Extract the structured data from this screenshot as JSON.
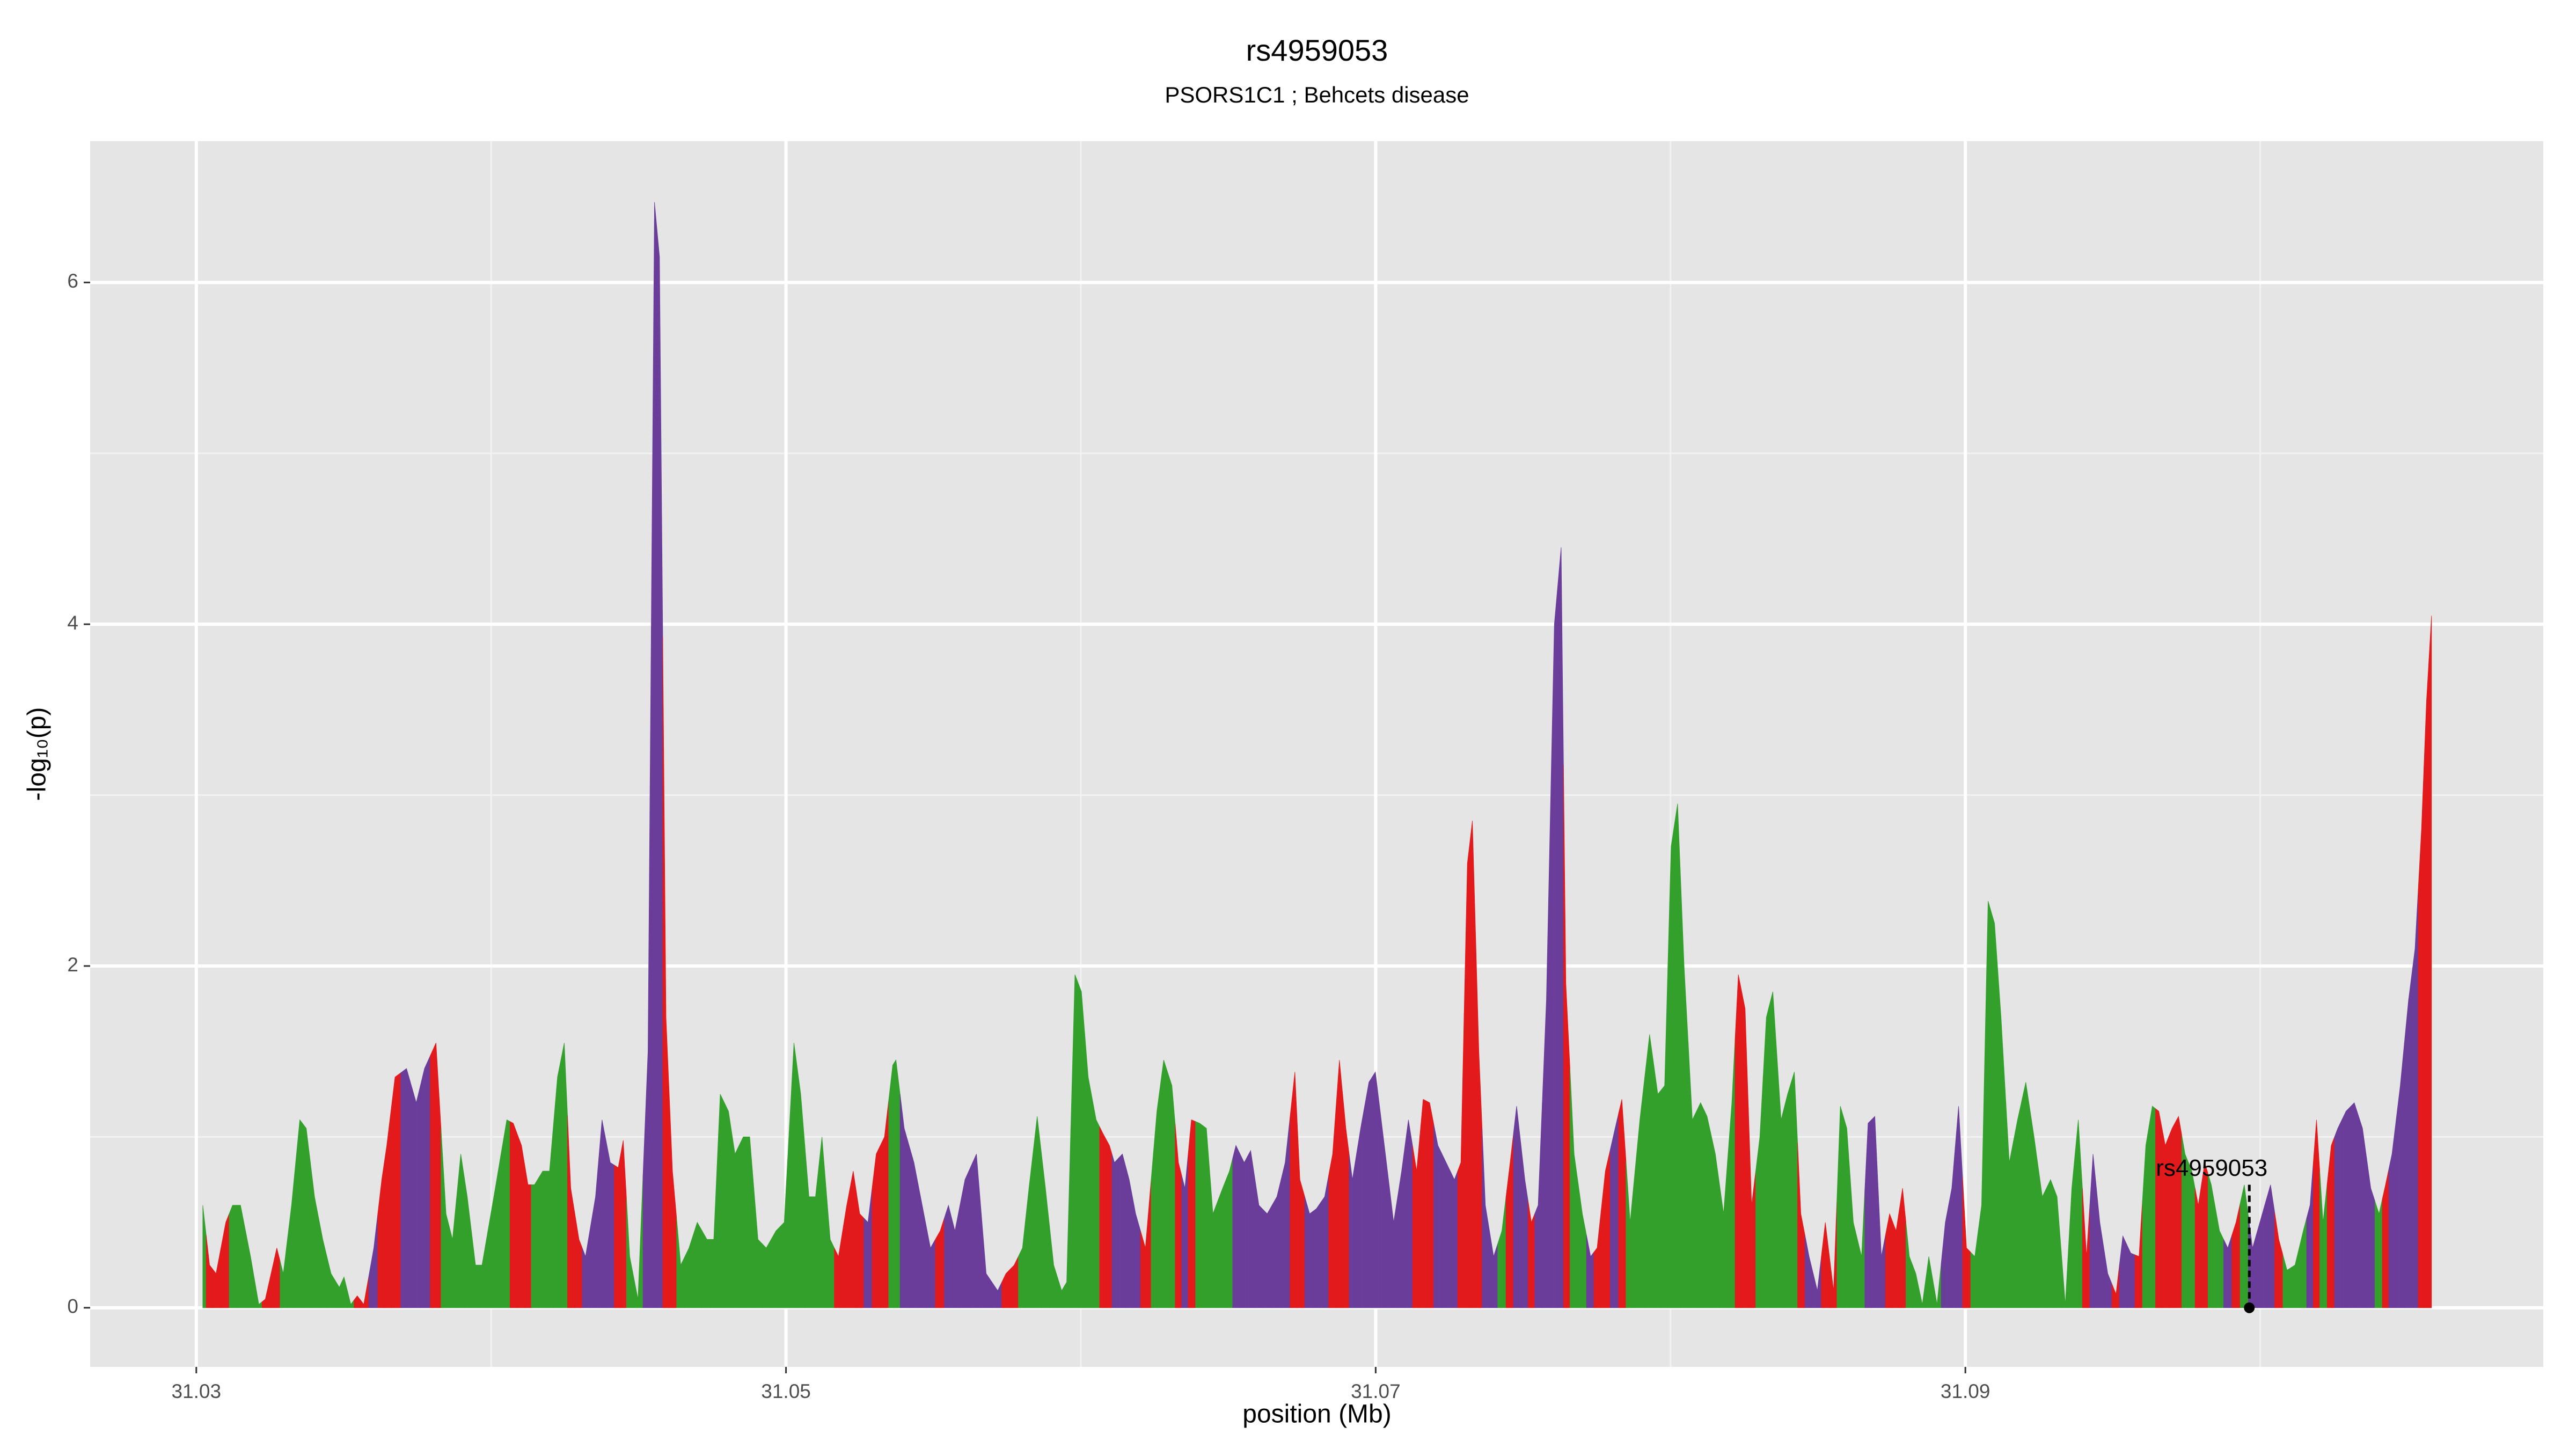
{
  "chart_data": {
    "type": "area",
    "title": "rs4959053",
    "subtitle": "PSORS1C1 ; Behcets disease",
    "x_label": "position (Mb)",
    "y_label": "-log₁₀(p)",
    "xlim": [
      31.0264,
      31.1096
    ],
    "ylim": [
      -0.346,
      6.827
    ],
    "xticks": [
      31.03,
      31.05,
      31.07,
      31.09
    ],
    "yticks": [
      0,
      2,
      4,
      6
    ],
    "x_minor_grid": [
      31.04,
      31.06,
      31.08,
      31.1
    ],
    "y_minor_grid": [
      1,
      3,
      5
    ],
    "grid": true,
    "x": [
      31.03022,
      31.03045,
      31.03067,
      31.031,
      31.03123,
      31.0315,
      31.03184,
      31.03212,
      31.03234,
      31.03273,
      31.03295,
      31.03323,
      31.03351,
      31.03373,
      31.03401,
      31.03429,
      31.03457,
      31.03485,
      31.03501,
      31.03524,
      31.03546,
      31.03568,
      31.03602,
      31.03629,
      31.03646,
      31.03674,
      31.03713,
      31.03746,
      31.03774,
      31.03813,
      31.03847,
      31.03869,
      31.03897,
      31.03919,
      31.03947,
      31.03969,
      31.04014,
      31.04053,
      31.04075,
      31.04103,
      31.04125,
      31.04147,
      31.04175,
      31.04198,
      31.04225,
      31.04248,
      31.0427,
      31.04298,
      31.0432,
      31.04354,
      31.04376,
      31.04404,
      31.04431,
      31.04448,
      31.0447,
      31.04498,
      31.04532,
      31.04554,
      31.04571,
      31.04593,
      31.04615,
      31.04643,
      31.04671,
      31.04699,
      31.04732,
      31.04755,
      31.04777,
      31.04805,
      31.04827,
      31.04855,
      31.04877,
      31.04905,
      31.04933,
      31.04966,
      31.04994,
      31.05027,
      31.0505,
      31.05078,
      31.051,
      31.05122,
      31.0515,
      31.05178,
      31.05206,
      31.05228,
      31.0525,
      31.05278,
      31.05306,
      31.05334,
      31.05362,
      31.05373,
      31.05401,
      31.05434,
      31.05462,
      31.0549,
      31.05523,
      31.05551,
      31.05573,
      31.05607,
      31.05646,
      31.05679,
      31.05718,
      31.05746,
      31.05774,
      31.05802,
      31.05824,
      31.05852,
      31.0588,
      31.05908,
      31.05935,
      31.05952,
      31.0598,
      31.06002,
      31.06025,
      31.06052,
      31.06075,
      31.06097,
      31.06114,
      31.06141,
      31.06164,
      31.06186,
      31.06219,
      31.06258,
      31.06281,
      31.06309,
      31.06331,
      31.06353,
      31.06375,
      31.06403,
      31.06426,
      31.06448,
      31.06481,
      31.06504,
      31.06526,
      31.06554,
      31.06576,
      31.06604,
      31.06632,
      31.06665,
      31.06693,
      31.06726,
      31.06743,
      31.06776,
      31.06799,
      31.06827,
      31.06854,
      31.06877,
      31.06899,
      31.06921,
      31.06949,
      31.06977,
      31.06999,
      31.07033,
      31.07061,
      31.07088,
      31.07111,
      31.07139,
      31.07161,
      31.07183,
      31.07211,
      31.07239,
      31.07267,
      31.07289,
      31.07311,
      31.07328,
      31.0735,
      31.07372,
      31.074,
      31.07428,
      31.07456,
      31.07478,
      31.07506,
      31.07528,
      31.07551,
      31.07579,
      31.07606,
      31.07629,
      31.07645,
      31.07673,
      31.07701,
      31.07729,
      31.07751,
      31.07779,
      31.07812,
      31.07835,
      31.07863,
      31.07896,
      31.07929,
      31.07957,
      31.0798,
      31.08002,
      31.08024,
      31.08046,
      31.08074,
      31.08102,
      31.08124,
      31.08152,
      31.0818,
      31.08208,
      31.0823,
      31.08253,
      31.08275,
      31.08303,
      31.08325,
      31.08347,
      31.08375,
      31.08397,
      31.0842,
      31.08442,
      31.0847,
      31.08498,
      31.08525,
      31.08553,
      31.08576,
      31.08598,
      31.0862,
      31.08648,
      31.0867,
      31.08693,
      31.08715,
      31.08743,
      31.08765,
      31.08787,
      31.0881,
      31.08832,
      31.08854,
      31.08876,
      31.08904,
      31.08932,
      31.08954,
      31.08977,
      31.09004,
      31.09032,
      31.09055,
      31.09077,
      31.09099,
      31.09121,
      31.09149,
      31.09177,
      31.09205,
      31.09233,
      31.09261,
      31.09289,
      31.09311,
      31.09339,
      31.09361,
      31.09383,
      31.09411,
      31.09433,
      31.09456,
      31.09483,
      31.09511,
      31.09534,
      31.09561,
      31.09589,
      31.09612,
      31.09634,
      31.09656,
      31.09678,
      31.09701,
      31.09723,
      31.09745,
      31.09768,
      31.0979,
      31.09812,
      31.09834,
      31.09862,
      31.0989,
      31.09918,
      31.09946,
      31.09974,
      31.10007,
      31.10035,
      31.10063,
      31.10091,
      31.10118,
      31.10146,
      31.10169,
      31.10191,
      31.10213,
      31.10241,
      31.10263,
      31.10291,
      31.10319,
      31.10347,
      31.10375,
      31.10403,
      31.10425,
      31.10447,
      31.10475,
      31.10503,
      31.10525,
      31.10547,
      31.10564,
      31.10581
    ],
    "values": [
      0.6,
      0.25,
      0.2,
      0.5,
      0.6,
      0.6,
      0.3,
      0.02,
      0.05,
      0.35,
      0.2,
      0.6,
      1.1,
      1.05,
      0.65,
      0.4,
      0.2,
      0.12,
      0.18,
      0.02,
      0.07,
      0.02,
      0.35,
      0.75,
      0.95,
      1.35,
      1.4,
      1.2,
      1.4,
      1.55,
      0.55,
      0.4,
      0.9,
      0.65,
      0.25,
      0.25,
      0.7,
      1.1,
      1.08,
      0.95,
      0.72,
      0.72,
      0.8,
      0.8,
      1.35,
      1.55,
      0.7,
      0.4,
      0.3,
      0.65,
      1.1,
      0.85,
      0.82,
      0.98,
      0.3,
      0.05,
      1.5,
      6.47,
      6.15,
      1.7,
      0.8,
      0.25,
      0.35,
      0.5,
      0.4,
      0.4,
      1.25,
      1.15,
      0.9,
      1,
      1,
      0.4,
      0.35,
      0.45,
      0.5,
      1.55,
      1.25,
      0.65,
      0.65,
      1,
      0.4,
      0.3,
      0.6,
      0.8,
      0.55,
      0.5,
      0.9,
      1,
      1.42,
      1.45,
      1.05,
      0.85,
      0.6,
      0.35,
      0.45,
      0.6,
      0.45,
      0.75,
      0.9,
      0.2,
      0.1,
      0.2,
      0.25,
      0.35,
      0.7,
      1.12,
      0.7,
      0.25,
      0.1,
      0.15,
      1.95,
      1.85,
      1.35,
      1.1,
      1.02,
      0.95,
      0.85,
      0.9,
      0.75,
      0.55,
      0.35,
      1.15,
      1.45,
      1.3,
      0.85,
      0.7,
      1.1,
      1.08,
      1.05,
      0.55,
      0.7,
      0.8,
      0.95,
      0.85,
      0.92,
      0.6,
      0.55,
      0.65,
      0.85,
      1.38,
      0.75,
      0.55,
      0.58,
      0.65,
      0.9,
      1.45,
      1.05,
      0.75,
      1.05,
      1.32,
      1.38,
      0.9,
      0.5,
      0.8,
      1.1,
      0.8,
      1.22,
      1.2,
      0.95,
      0.85,
      0.75,
      0.85,
      2.6,
      2.85,
      1.5,
      0.6,
      0.3,
      0.45,
      0.85,
      1.18,
      0.75,
      0.5,
      0.6,
      1.8,
      4,
      4.45,
      1.9,
      0.9,
      0.55,
      0.3,
      0.35,
      0.8,
      1.05,
      1.22,
      0.5,
      1.1,
      1.6,
      1.25,
      1.3,
      2.7,
      2.95,
      2,
      1.1,
      1.2,
      1.12,
      0.9,
      0.55,
      1.2,
      1.95,
      1.75,
      0.6,
      1,
      1.7,
      1.85,
      1.1,
      1.25,
      1.38,
      0.55,
      0.3,
      0.1,
      0.5,
      0.1,
      1.18,
      1.05,
      0.5,
      0.3,
      1.08,
      1.12,
      0.3,
      0.55,
      0.45,
      0.7,
      0.3,
      0.2,
      0.02,
      0.3,
      0.02,
      0.5,
      0.7,
      1.18,
      0.35,
      0.3,
      0.6,
      2.38,
      2.25,
      1.7,
      0.85,
      1.1,
      1.32,
      1,
      0.65,
      0.75,
      0.65,
      0.02,
      0.7,
      1.1,
      0.3,
      0.9,
      0.5,
      0.2,
      0.08,
      0.42,
      0.32,
      0.3,
      0.95,
      1.18,
      1.15,
      0.95,
      1.05,
      1.12,
      0.9,
      0.8,
      0.6,
      0.85,
      0.72,
      0.45,
      0.35,
      0.5,
      0.72,
      0.35,
      0.55,
      0.72,
      0.4,
      0.22,
      0.25,
      0.45,
      0.6,
      1.1,
      0.5,
      0.95,
      1.05,
      1.15,
      1.2,
      1.05,
      0.7,
      0.55,
      0.72,
      0.9,
      1.3,
      1.8,
      2.1,
      2.8,
      3.55,
      4.05
    ],
    "colors": [
      "#33a02c",
      "#e31a1c",
      "#e31a1c",
      "#e31a1c",
      "#33a02c",
      "#33a02c",
      "#33a02c",
      "#33a02c",
      "#e31a1c",
      "#e31a1c",
      "#33a02c",
      "#33a02c",
      "#33a02c",
      "#33a02c",
      "#33a02c",
      "#33a02c",
      "#33a02c",
      "#33a02c",
      "#33a02c",
      "#33a02c",
      "#e31a1c",
      "#e31a1c",
      "#6a3d9a",
      "#e31a1c",
      "#e31a1c",
      "#e31a1c",
      "#6a3d9a",
      "#6a3d9a",
      "#6a3d9a",
      "#e31a1c",
      "#33a02c",
      "#33a02c",
      "#33a02c",
      "#33a02c",
      "#33a02c",
      "#33a02c",
      "#33a02c",
      "#33a02c",
      "#e31a1c",
      "#e31a1c",
      "#e31a1c",
      "#33a02c",
      "#33a02c",
      "#33a02c",
      "#33a02c",
      "#33a02c",
      "#e31a1c",
      "#e31a1c",
      "#6a3d9a",
      "#6a3d9a",
      "#6a3d9a",
      "#6a3d9a",
      "#e31a1c",
      "#e31a1c",
      "#33a02c",
      "#33a02c",
      "#6a3d9a",
      "#6a3d9a",
      "#6a3d9a",
      "#e31a1c",
      "#e31a1c",
      "#33a02c",
      "#33a02c",
      "#33a02c",
      "#33a02c",
      "#33a02c",
      "#33a02c",
      "#33a02c",
      "#33a02c",
      "#33a02c",
      "#33a02c",
      "#33a02c",
      "#33a02c",
      "#33a02c",
      "#33a02c",
      "#33a02c",
      "#33a02c",
      "#33a02c",
      "#33a02c",
      "#33a02c",
      "#33a02c",
      "#e31a1c",
      "#e31a1c",
      "#e31a1c",
      "#e31a1c",
      "#6a3d9a",
      "#e31a1c",
      "#e31a1c",
      "#33a02c",
      "#33a02c",
      "#6a3d9a",
      "#6a3d9a",
      "#6a3d9a",
      "#6a3d9a",
      "#e31a1c",
      "#6a3d9a",
      "#6a3d9a",
      "#6a3d9a",
      "#6a3d9a",
      "#6a3d9a",
      "#6a3d9a",
      "#e31a1c",
      "#e31a1c",
      "#33a02c",
      "#33a02c",
      "#33a02c",
      "#33a02c",
      "#33a02c",
      "#33a02c",
      "#33a02c",
      "#33a02c",
      "#33a02c",
      "#33a02c",
      "#33a02c",
      "#e31a1c",
      "#e31a1c",
      "#6a3d9a",
      "#6a3d9a",
      "#6a3d9a",
      "#6a3d9a",
      "#e31a1c",
      "#33a02c",
      "#33a02c",
      "#33a02c",
      "#e31a1c",
      "#6a3d9a",
      "#e31a1c",
      "#33a02c",
      "#33a02c",
      "#33a02c",
      "#33a02c",
      "#33a02c",
      "#6a3d9a",
      "#6a3d9a",
      "#6a3d9a",
      "#6a3d9a",
      "#6a3d9a",
      "#6a3d9a",
      "#6a3d9a",
      "#e31a1c",
      "#e31a1c",
      "#6a3d9a",
      "#6a3d9a",
      "#6a3d9a",
      "#e31a1c",
      "#e31a1c",
      "#e31a1c",
      "#6a3d9a",
      "#6a3d9a",
      "#6a3d9a",
      "#6a3d9a",
      "#6a3d9a",
      "#6a3d9a",
      "#6a3d9a",
      "#6a3d9a",
      "#e31a1c",
      "#e31a1c",
      "#e31a1c",
      "#6a3d9a",
      "#6a3d9a",
      "#6a3d9a",
      "#e31a1c",
      "#e31a1c",
      "#e31a1c",
      "#e31a1c",
      "#6a3d9a",
      "#6a3d9a",
      "#33a02c",
      "#e31a1c",
      "#6a3d9a",
      "#6a3d9a",
      "#e31a1c",
      "#6a3d9a",
      "#6a3d9a",
      "#6a3d9a",
      "#6a3d9a",
      "#e31a1c",
      "#33a02c",
      "#33a02c",
      "#6a3d9a",
      "#e31a1c",
      "#e31a1c",
      "#6a3d9a",
      "#e31a1c",
      "#33a02c",
      "#33a02c",
      "#33a02c",
      "#33a02c",
      "#33a02c",
      "#33a02c",
      "#33a02c",
      "#33a02c",
      "#33a02c",
      "#33a02c",
      "#33a02c",
      "#33a02c",
      "#33a02c",
      "#33a02c",
      "#e31a1c",
      "#e31a1c",
      "#e31a1c",
      "#33a02c",
      "#33a02c",
      "#33a02c",
      "#33a02c",
      "#33a02c",
      "#33a02c",
      "#e31a1c",
      "#6a3d9a",
      "#6a3d9a",
      "#e31a1c",
      "#e31a1c",
      "#33a02c",
      "#33a02c",
      "#33a02c",
      "#33a02c",
      "#6a3d9a",
      "#6a3d9a",
      "#6a3d9a",
      "#e31a1c",
      "#e31a1c",
      "#e31a1c",
      "#33a02c",
      "#33a02c",
      "#33a02c",
      "#33a02c",
      "#33a02c",
      "#6a3d9a",
      "#6a3d9a",
      "#6a3d9a",
      "#e31a1c",
      "#33a02c",
      "#33a02c",
      "#33a02c",
      "#33a02c",
      "#33a02c",
      "#33a02c",
      "#33a02c",
      "#33a02c",
      "#33a02c",
      "#33a02c",
      "#33a02c",
      "#33a02c",
      "#33a02c",
      "#33a02c",
      "#33a02c",
      "#e31a1c",
      "#6a3d9a",
      "#6a3d9a",
      "#6a3d9a",
      "#e31a1c",
      "#6a3d9a",
      "#6a3d9a",
      "#e31a1c",
      "#33a02c",
      "#33a02c",
      "#e31a1c",
      "#e31a1c",
      "#e31a1c",
      "#e31a1c",
      "#33a02c",
      "#33a02c",
      "#e31a1c",
      "#e31a1c",
      "#33a02c",
      "#33a02c",
      "#6a3d9a",
      "#e31a1c",
      "#33a02c",
      "#6a3d9a",
      "#6a3d9a",
      "#6a3d9a",
      "#e31a1c",
      "#33a02c",
      "#33a02c",
      "#33a02c",
      "#6a3d9a",
      "#e31a1c",
      "#33a02c",
      "#e31a1c",
      "#6a3d9a",
      "#6a3d9a",
      "#6a3d9a",
      "#6a3d9a",
      "#6a3d9a",
      "#33a02c",
      "#e31a1c",
      "#6a3d9a",
      "#6a3d9a",
      "#6a3d9a",
      "#6a3d9a",
      "#e31a1c",
      "#e31a1c",
      "#e31a1c"
    ],
    "annotation": {
      "label": "rs4959053",
      "x": 31.09963,
      "y": 0.72
    }
  }
}
